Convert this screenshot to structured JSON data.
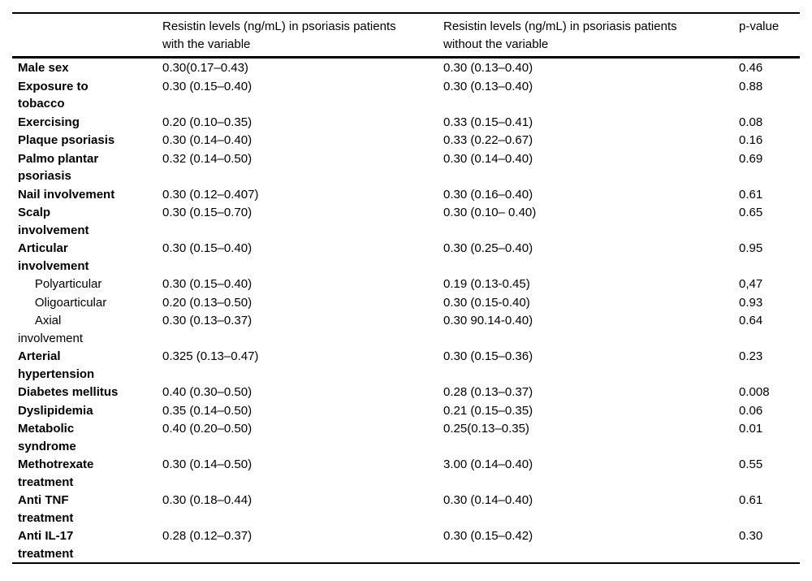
{
  "table": {
    "headers": {
      "variable": "",
      "with_variable": "Resistin levels (ng/mL) in psoriasis patients\nwith the variable",
      "without_variable": "Resistin levels (ng/mL) in psoriasis patients\nwithout the variable",
      "p_value": "p-value"
    },
    "rows": [
      {
        "label": "Male sex",
        "with_variable": "0.30(0.17–0.43)",
        "without_variable": "0.30 (0.13–0.40)",
        "p_value": "0.46"
      },
      {
        "label": "Exposure to\ntobacco",
        "with_variable": "0.30 (0.15–0.40)",
        "without_variable": "0.30 (0.13–0.40)",
        "p_value": "0.88"
      },
      {
        "label": "Exercising",
        "with_variable": "0.20 (0.10–0.35)",
        "without_variable": "0.33 (0.15–0.41)",
        "p_value": "0.08"
      },
      {
        "label": "Plaque psoriasis",
        "with_variable": "0.30 (0.14–0.40)",
        "without_variable": "0.33 (0.22–0.67)",
        "p_value": "0.16"
      },
      {
        "label": "Palmo plantar\npsoriasis",
        "with_variable": "0.32 (0.14–0.50)",
        "without_variable": "0.30 (0.14–0.40)",
        "p_value": "0.69"
      },
      {
        "label": "Nail involvement",
        "with_variable": "0.30 (0.12–0.407)",
        "without_variable": "0.30 (0.16–0.40)",
        "p_value": "0.61"
      },
      {
        "label": "Scalp\ninvolvement",
        "with_variable": "0.30 (0.15–0.70)",
        "without_variable": "0.30 (0.10– 0.40)",
        "p_value": "0.65"
      },
      {
        "label": "Articular\ninvolvement",
        "with_variable": "0.30 (0.15–0.40)",
        "without_variable": "0.30 (0.25–0.40)",
        "p_value": "0.95"
      },
      {
        "label": "     Polyarticular",
        "with_variable": "0.30 (0.15–0.40)",
        "without_variable": "0.19 (0.13-0.45)",
        "p_value": "0,47"
      },
      {
        "label": "     Oligoarticular",
        "with_variable": "0.20 (0.13–0.50)",
        "without_variable": "0.30 (0.15-0.40)",
        "p_value": "0.93"
      },
      {
        "label": "     Axial\ninvolvement",
        "with_variable": "0.30 (0.13–0.37)",
        "without_variable": "0.30 90.14-0.40)",
        "p_value": "0.64"
      },
      {
        "label": "Arterial\nhypertension",
        "with_variable": "0.325 (0.13–0.47)",
        "without_variable": "0.30 (0.15–0.36)",
        "p_value": "0.23"
      },
      {
        "label": "Diabetes mellitus",
        "with_variable": "0.40 (0.30–0.50)",
        "without_variable": "0.28 (0.13–0.37)",
        "p_value": "0.008"
      },
      {
        "label": "Dyslipidemia",
        "with_variable": "0.35 (0.14–0.50)",
        "without_variable": "0.21 (0.15–0.35)",
        "p_value": "0.06"
      },
      {
        "label": "Metabolic\nsyndrome",
        "with_variable": "0.40 (0.20–0.50)",
        "without_variable": "0.25(0.13–0.35)",
        "p_value": "0.01"
      },
      {
        "label": "Methotrexate\ntreatment",
        "with_variable": "0.30 (0.14–0.50)",
        "without_variable": "3.00 (0.14–0.40)",
        "p_value": "0.55"
      },
      {
        "label": "Anti TNF\ntreatment",
        "with_variable": "0.30 (0.18–0.44)",
        "without_variable": "0.30 (0.14–0.40)",
        "p_value": "0.61"
      },
      {
        "label": "Anti IL-17\ntreatment",
        "with_variable": "0.28 (0.12–0.37)",
        "without_variable": "0.30 (0.15–0.42)",
        "p_value": "0.30"
      }
    ]
  }
}
